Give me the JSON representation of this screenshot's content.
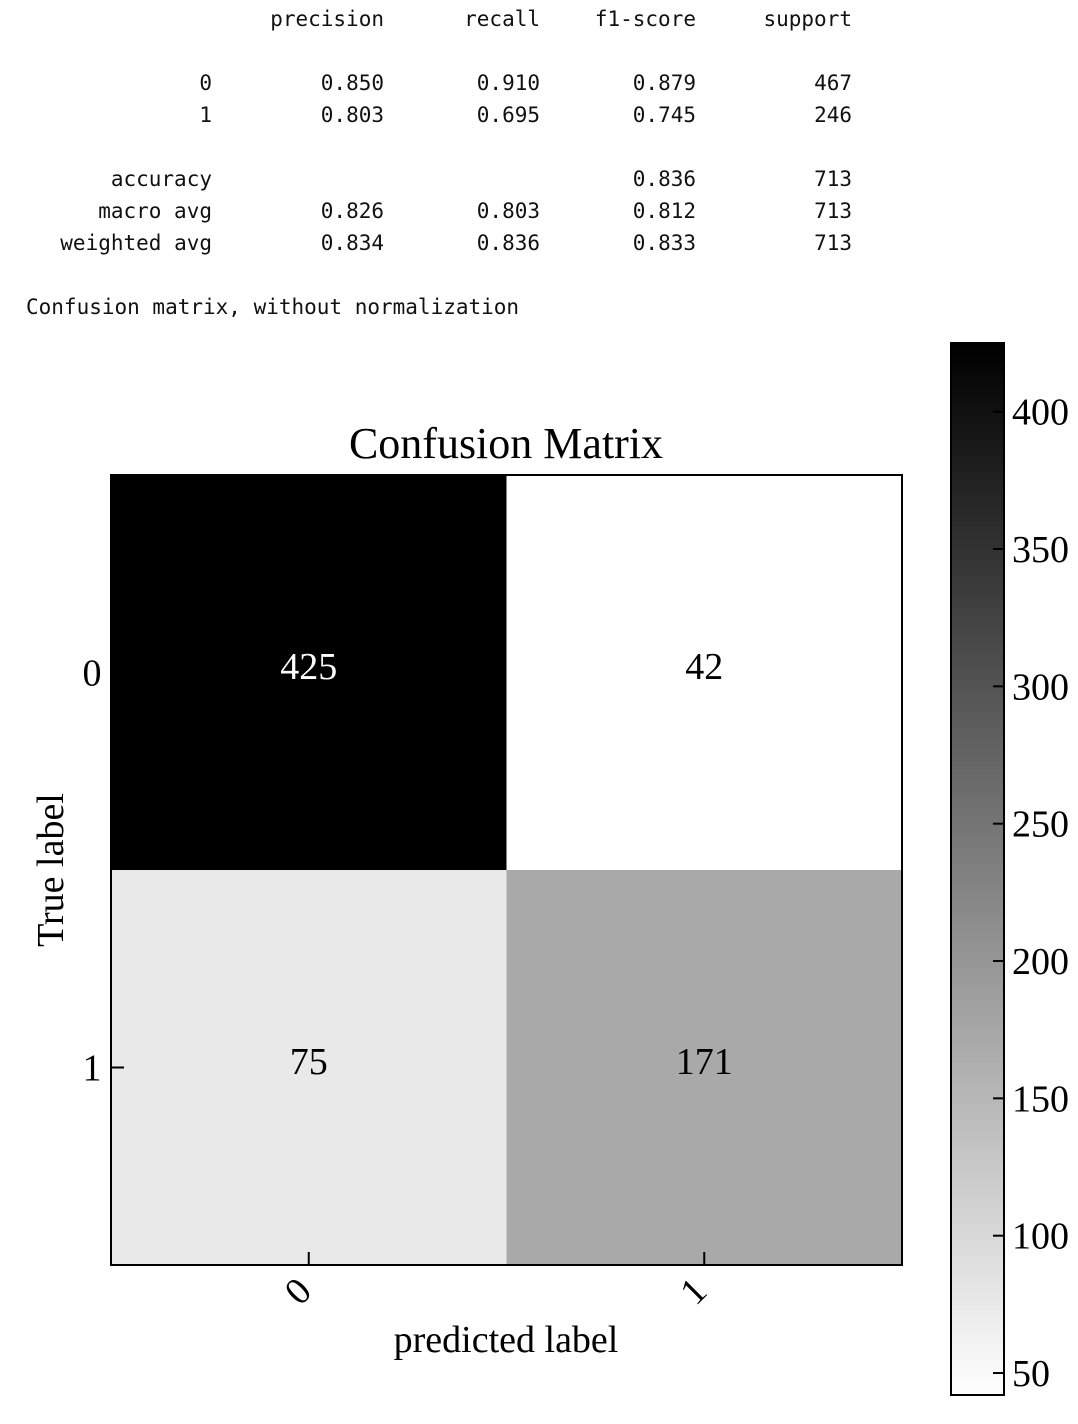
{
  "report": {
    "headers": [
      "precision",
      "recall",
      "f1-score",
      "support"
    ],
    "rows": [
      {
        "label": "0",
        "values": [
          "0.850",
          "0.910",
          "0.879",
          "467"
        ]
      },
      {
        "label": "1",
        "values": [
          "0.803",
          "0.695",
          "0.745",
          "246"
        ]
      },
      {
        "label": "accuracy",
        "values": [
          "",
          "",
          "0.836",
          "713"
        ]
      },
      {
        "label": "macro avg",
        "values": [
          "0.826",
          "0.803",
          "0.812",
          "713"
        ]
      },
      {
        "label": "weighted avg",
        "values": [
          "0.834",
          "0.836",
          "0.833",
          "713"
        ]
      }
    ],
    "caption": "Confusion matrix, without normalization"
  },
  "chart_data": {
    "type": "heatmap",
    "title": "Confusion Matrix",
    "xlabel": "predicted label",
    "ylabel": "True label",
    "x_categories": [
      "0",
      "1"
    ],
    "y_categories": [
      "0",
      "1"
    ],
    "values": [
      [
        425,
        42
      ],
      [
        75,
        171
      ]
    ],
    "colormap": "Greys",
    "colorbar": {
      "range": [
        42,
        425
      ],
      "ticks": [
        50,
        100,
        150,
        200,
        250,
        300,
        350,
        400
      ]
    },
    "cell_text_colors": {
      "dark": "#ffffff",
      "light": "#000000"
    }
  }
}
